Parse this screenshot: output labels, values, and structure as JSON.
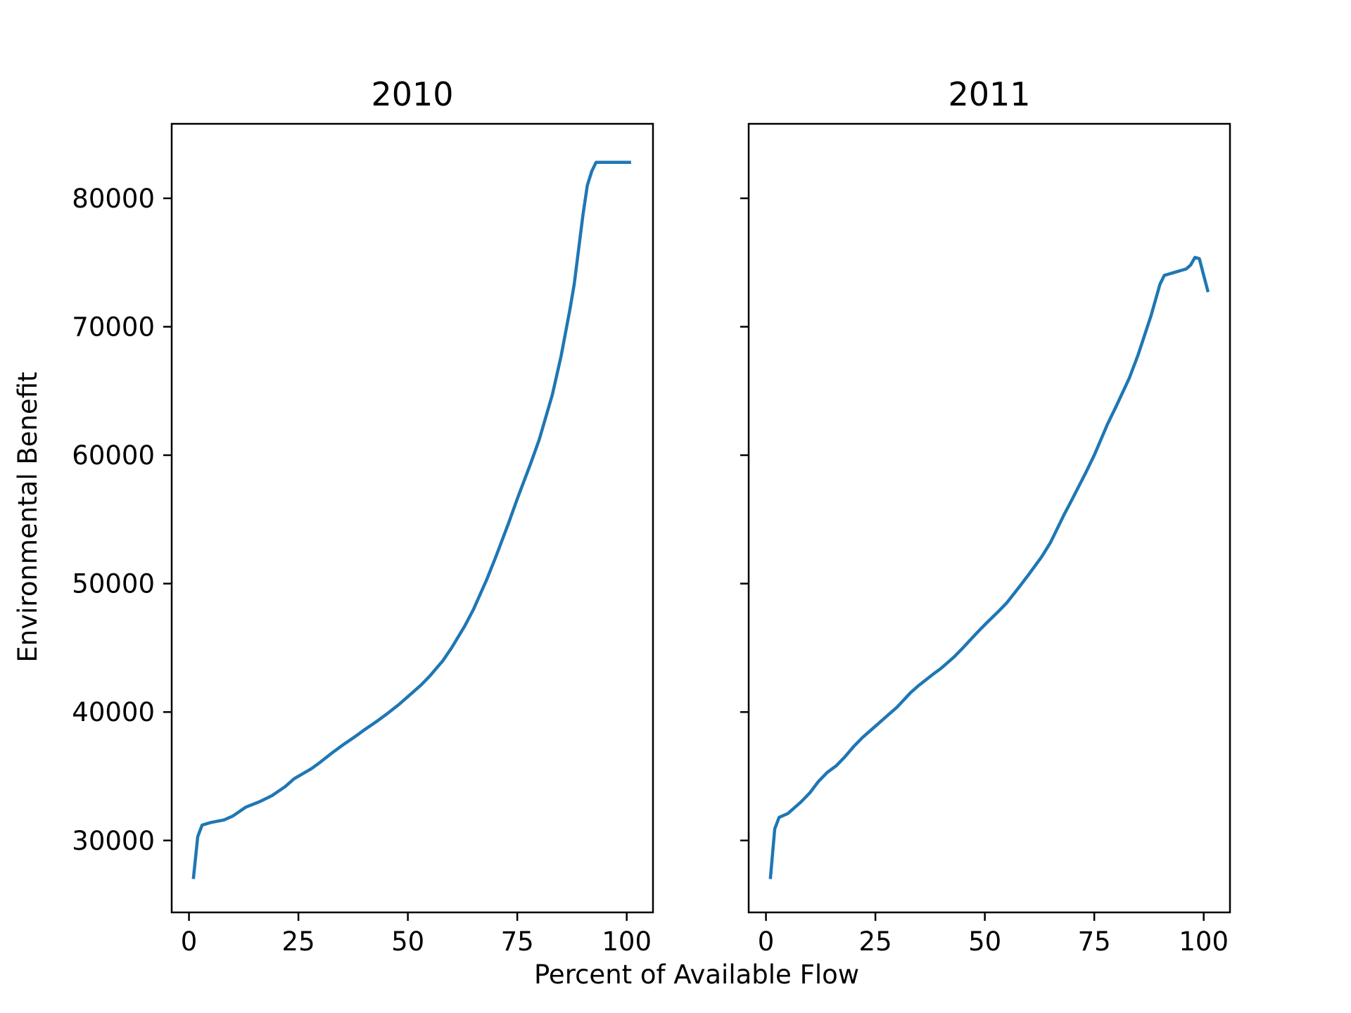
{
  "figure": {
    "xlabel": "Percent of Available Flow",
    "ylabel": "Environmental Benefit",
    "line_color": "#1f77b4"
  },
  "chart_data": [
    {
      "type": "line",
      "title": "2010",
      "xlabel": "Percent of Available Flow",
      "ylabel": "Environmental Benefit",
      "xlim": [
        -3.95,
        106
      ],
      "ylim": [
        24400,
        85800
      ],
      "xticks": [
        0,
        25,
        50,
        75,
        100
      ],
      "xtick_labels": [
        "0",
        "25",
        "50",
        "75",
        "100"
      ],
      "yticks": [
        30000,
        40000,
        50000,
        60000,
        70000,
        80000
      ],
      "ytick_labels": [
        "30000",
        "40000",
        "50000",
        "60000",
        "70000",
        "80000"
      ],
      "grid": false,
      "series": [
        {
          "color": "#1f77b4",
          "x": [
            1,
            2,
            3,
            5,
            8,
            10,
            13,
            16,
            19,
            22,
            24,
            25,
            28,
            30,
            33,
            35,
            38,
            40,
            43,
            45,
            48,
            50,
            53,
            55,
            58,
            60,
            63,
            65,
            68,
            70,
            73,
            75,
            78,
            80,
            83,
            85,
            87,
            88,
            90,
            91,
            92,
            93,
            94,
            95,
            96,
            97,
            98,
            99,
            100,
            101
          ],
          "y": [
            27000,
            30300,
            31200,
            31400,
            31600,
            31900,
            32600,
            33000,
            33500,
            34200,
            34800,
            35000,
            35600,
            36100,
            36900,
            37400,
            38100,
            38600,
            39300,
            39800,
            40600,
            41200,
            42100,
            42800,
            44000,
            45000,
            46700,
            48000,
            50300,
            52000,
            54700,
            56600,
            59300,
            61200,
            64700,
            67700,
            71300,
            73300,
            78700,
            81000,
            82100,
            82800,
            82800,
            82800,
            82800,
            82800,
            82800,
            82800,
            82800,
            82800
          ]
        }
      ]
    },
    {
      "type": "line",
      "title": "2011",
      "xlabel": "Percent of Available Flow",
      "ylabel": "Environmental Benefit",
      "xlim": [
        -3.95,
        106
      ],
      "ylim": [
        24400,
        85800
      ],
      "xticks": [
        0,
        25,
        50,
        75,
        100
      ],
      "xtick_labels": [
        "0",
        "25",
        "50",
        "75",
        "100"
      ],
      "yticks": [
        30000,
        40000,
        50000,
        60000,
        70000,
        80000
      ],
      "ytick_labels": [
        "",
        "",
        "",
        "",
        "",
        ""
      ],
      "grid": false,
      "series": [
        {
          "color": "#1f77b4",
          "x": [
            1,
            2,
            3,
            5,
            8,
            10,
            12,
            14,
            16,
            18,
            20,
            22,
            24,
            26,
            28,
            30,
            33,
            35,
            38,
            40,
            43,
            45,
            48,
            50,
            53,
            55,
            58,
            60,
            63,
            65,
            68,
            70,
            73,
            75,
            78,
            80,
            83,
            85,
            88,
            90,
            91,
            92,
            93,
            94,
            95,
            96,
            97,
            98,
            99,
            100,
            101
          ],
          "y": [
            27000,
            30900,
            31800,
            32100,
            33000,
            33700,
            34600,
            35300,
            35800,
            36500,
            37300,
            38000,
            38600,
            39200,
            39800,
            40400,
            41500,
            42100,
            42900,
            43400,
            44300,
            45000,
            46100,
            46800,
            47800,
            48500,
            49800,
            50700,
            52100,
            53200,
            55300,
            56600,
            58600,
            60000,
            62400,
            63800,
            66000,
            67800,
            70900,
            73300,
            74000,
            74100,
            74200,
            74300,
            74400,
            74500,
            74800,
            75400,
            75300,
            74000,
            72700
          ]
        }
      ]
    }
  ]
}
